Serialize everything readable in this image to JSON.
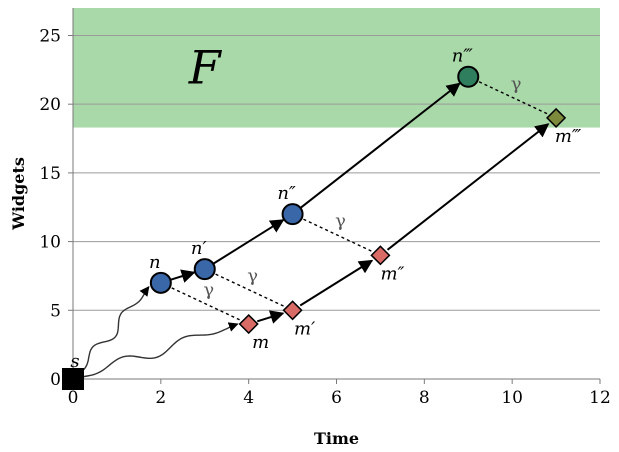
{
  "chart_data": {
    "type": "scatter",
    "xlabel": "Time",
    "ylabel": "Widgets",
    "xlim": [
      0,
      12
    ],
    "ylim": [
      0,
      27
    ],
    "xticks": [
      0,
      2,
      4,
      6,
      8,
      10,
      12
    ],
    "yticks": [
      0,
      5,
      10,
      15,
      20,
      25
    ],
    "grid": "horizontal",
    "region": {
      "label": "F",
      "y_from": 18.3,
      "y_to": 27,
      "color": "#a9d8a9"
    },
    "start": {
      "label": "s",
      "x": 0,
      "y": 0,
      "color": "#000000"
    },
    "n_points": [
      {
        "label": "n",
        "x": 2,
        "y": 7
      },
      {
        "label": "n′",
        "x": 3,
        "y": 8
      },
      {
        "label": "n″",
        "x": 5,
        "y": 12
      },
      {
        "label": "n‴",
        "x": 9,
        "y": 22
      }
    ],
    "m_points": [
      {
        "label": "m",
        "x": 4,
        "y": 4
      },
      {
        "label": "m′",
        "x": 5,
        "y": 5
      },
      {
        "label": "m″",
        "x": 7,
        "y": 9
      },
      {
        "label": "m‴",
        "x": 11,
        "y": 19
      }
    ],
    "colors": {
      "n_fill": "#3a67a8",
      "n_final_fill": "#2f7f5e",
      "m_fill": "#d96b66",
      "m_final_fill": "#7d8a3c"
    },
    "solid_arrows": [
      [
        0,
        1
      ],
      [
        1,
        2
      ],
      [
        2,
        3
      ]
    ],
    "gamma_label": "γ",
    "gamma_links": [
      {
        "n": 0,
        "m": 0
      },
      {
        "n": 1,
        "m": 1
      },
      {
        "n": 2,
        "m": 2
      },
      {
        "n": 3,
        "m": 3
      }
    ]
  }
}
